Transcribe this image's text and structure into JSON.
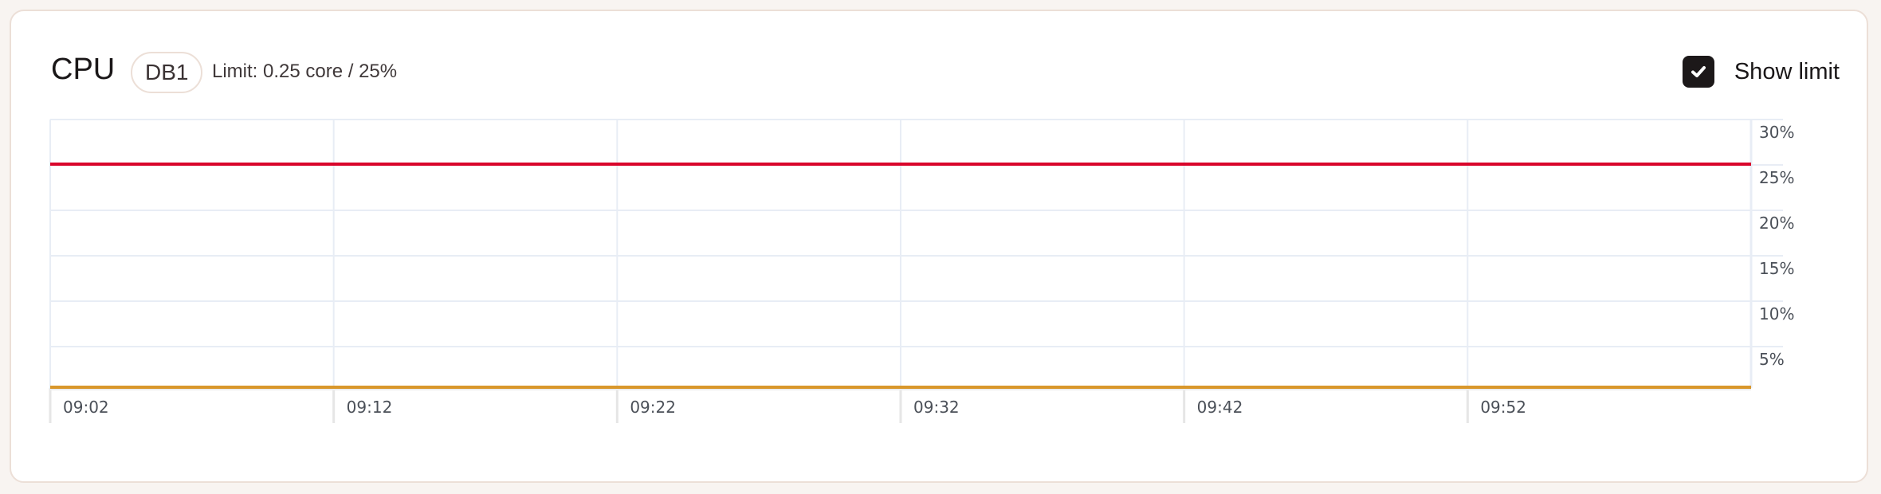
{
  "header": {
    "title": "CPU",
    "badge": "DB1",
    "limit_text": "Limit: 0.25 core / 25%",
    "show_limit_label": "Show limit",
    "show_limit_checked": true
  },
  "chart_data": {
    "type": "line",
    "title": "CPU",
    "xlabel": "",
    "ylabel": "",
    "x_ticks": [
      "09:02",
      "09:12",
      "09:22",
      "09:32",
      "09:42",
      "09:52"
    ],
    "y_ticks": [
      "30%",
      "25%",
      "20%",
      "15%",
      "10%",
      "5%"
    ],
    "y_tick_values": [
      30,
      25,
      20,
      15,
      10,
      5
    ],
    "ylim": [
      0,
      30
    ],
    "xlim": [
      "09:02",
      "10:02"
    ],
    "grid": true,
    "y_axis_side": "right",
    "series": [
      {
        "values_x": [
          "09:02",
          "10:02"
        ],
        "values": [
          0.5,
          0.5
        ],
        "color": "#d9972b"
      }
    ],
    "limit_line": {
      "value": 25,
      "color": "#d9052b"
    }
  }
}
